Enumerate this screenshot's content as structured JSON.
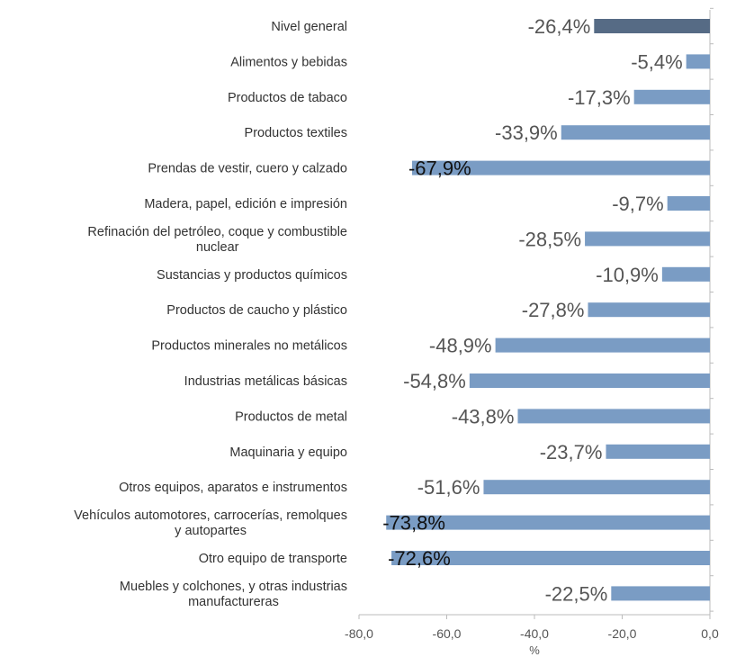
{
  "chart_data": {
    "type": "bar",
    "orientation": "horizontal",
    "categories": [
      [
        "Nivel general"
      ],
      [
        "Alimentos y bebidas"
      ],
      [
        "Productos de tabaco"
      ],
      [
        "Productos textiles"
      ],
      [
        "Prendas de vestir, cuero y calzado"
      ],
      [
        "Madera, papel, edición e impresión"
      ],
      [
        "Refinación del petróleo, coque y combustible",
        "nuclear"
      ],
      [
        "Sustancias y productos químicos"
      ],
      [
        "Productos de caucho y plástico"
      ],
      [
        "Productos minerales no metálicos"
      ],
      [
        "Industrias metálicas básicas"
      ],
      [
        "Productos de metal"
      ],
      [
        "Maquinaria y equipo"
      ],
      [
        "Otros equipos, aparatos e instrumentos"
      ],
      [
        "Vehículos automotores, carrocerías, remolques",
        "y autopartes"
      ],
      [
        "Otro equipo de transporte"
      ],
      [
        "Muebles y colchones, y otras industrias",
        "manufactureras"
      ]
    ],
    "values": [
      -26.4,
      -5.4,
      -17.3,
      -33.9,
      -67.9,
      -9.7,
      -28.5,
      -10.9,
      -27.8,
      -48.9,
      -54.8,
      -43.8,
      -23.7,
      -51.6,
      -73.8,
      -72.6,
      -22.5
    ],
    "value_labels": [
      "-26,4%",
      "-5,4%",
      "-17,3%",
      "-33,9%",
      "-67,9%",
      "-9,7%",
      "-28,5%",
      "-10,9%",
      "-27,8%",
      "-48,9%",
      "-54,8%",
      "-43,8%",
      "-23,7%",
      "-51,6%",
      "-73,8%",
      "-72,6%",
      "-22,5%"
    ],
    "label_dark": [
      false,
      false,
      false,
      false,
      true,
      false,
      false,
      false,
      false,
      false,
      false,
      false,
      false,
      false,
      true,
      true,
      false
    ],
    "highlight_index": 0,
    "colors": {
      "bar": "#7a9cc4",
      "highlight_bar": "#566b85",
      "axis": "#bbbbbb"
    },
    "xlim": [
      -80,
      0
    ],
    "x_ticks": [
      -80,
      -60,
      -40,
      -20,
      0
    ],
    "x_tick_labels": [
      "-80,0",
      "-60,0",
      "-40,0",
      "-20,0",
      "0,0"
    ],
    "xlabel": "%",
    "ylabel": "",
    "title": "",
    "grid": false,
    "legend": "none"
  }
}
